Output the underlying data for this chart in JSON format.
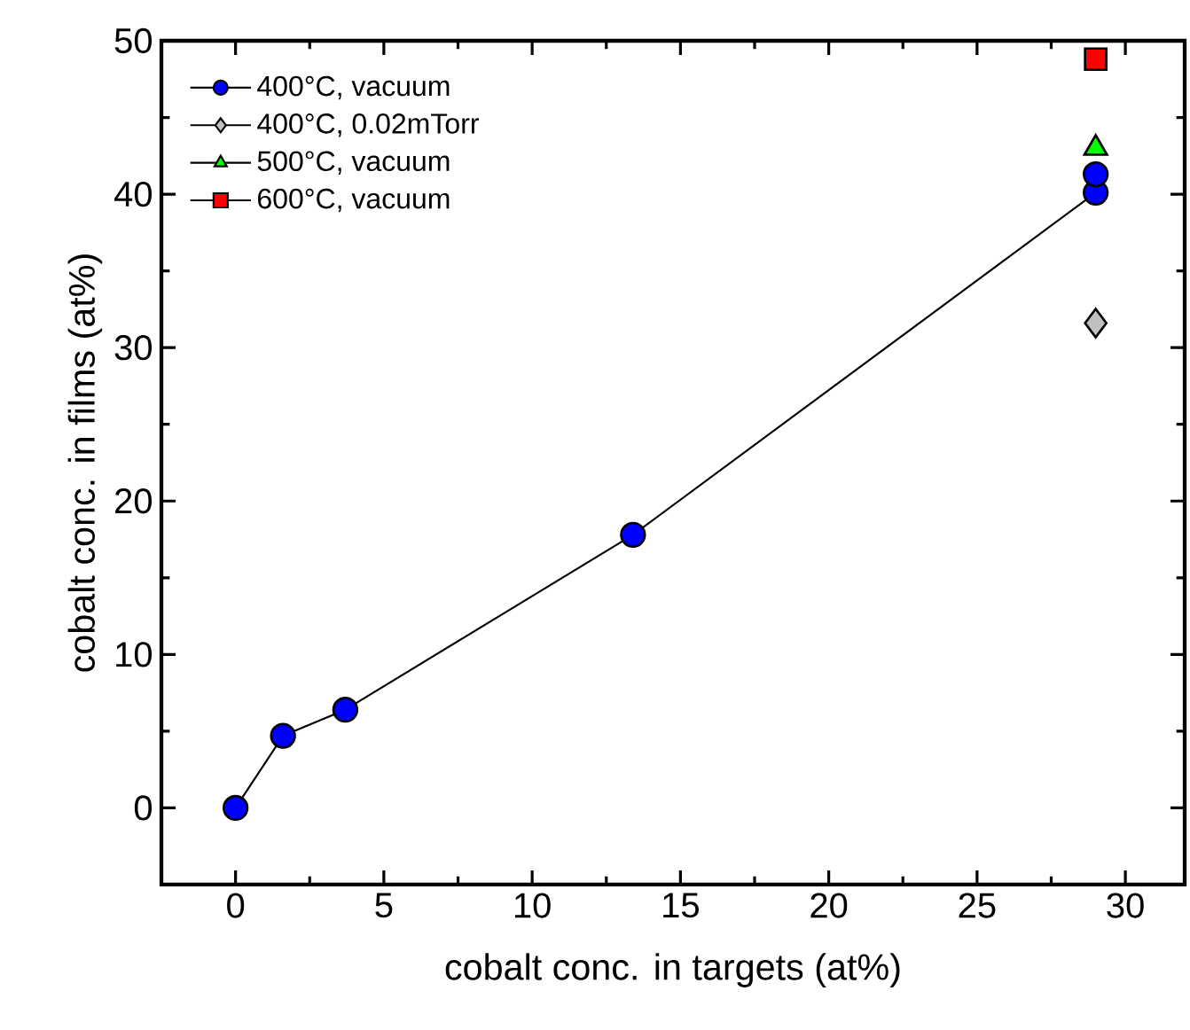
{
  "chart_data": {
    "type": "scatter",
    "xlabel": "cobalt conc. in targets (at%)",
    "ylabel": "cobalt conc. in films (at%)",
    "xlim": [
      -2.5,
      32
    ],
    "ylim": [
      -5,
      50
    ],
    "xticks": [
      0,
      5,
      10,
      15,
      20,
      25,
      30
    ],
    "yticks": [
      0,
      10,
      20,
      30,
      40,
      50
    ],
    "legend": "top left",
    "series": [
      {
        "name": "400°C, vacuum",
        "type": "line",
        "marker": "circle",
        "color": "#0000ff",
        "x": [
          0,
          1.6,
          3.7,
          13.4,
          29,
          29
        ],
        "values": [
          0,
          4.7,
          6.4,
          17.8,
          40.1,
          41.3
        ]
      },
      {
        "name": "400°C, 0.02mTorr",
        "marker": "diamond",
        "color": "#c0c0c0",
        "x": [
          29
        ],
        "values": [
          31.6
        ]
      },
      {
        "name": "500°C, vacuum",
        "marker": "triangle",
        "color": "#00ff00",
        "x": [
          29
        ],
        "values": [
          43.0
        ]
      },
      {
        "name": "600°C, vacuum",
        "marker": "square",
        "color": "#ff0000",
        "x": [
          29
        ],
        "values": [
          48.8
        ]
      }
    ]
  }
}
